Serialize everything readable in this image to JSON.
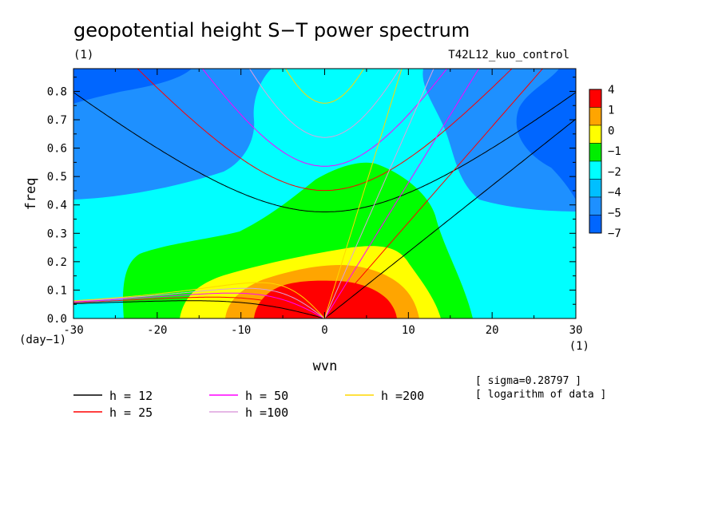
{
  "chart_data": {
    "type": "heatmap",
    "title": "geopotential height S−T power spectrum",
    "subtitle_left": "(1)",
    "subtitle_right": "T42L12_kuo_control",
    "xlabel": "wvn",
    "ylabel": "freq",
    "x_unit": "(1)",
    "y_unit": "(day−1)",
    "xlim": [
      -30,
      30
    ],
    "ylim": [
      0,
      0.88
    ],
    "x_ticks": [
      -30,
      -20,
      -10,
      0,
      10,
      20,
      30
    ],
    "y_ticks": [
      0.0,
      0.1,
      0.2,
      0.3,
      0.4,
      0.5,
      0.6,
      0.7,
      0.8
    ],
    "y_tick_labels": [
      "0.0",
      "0.1",
      "0.2",
      "0.3",
      "0.4",
      "0.5",
      "0.6",
      "0.7",
      "0.8"
    ],
    "colorbar": {
      "labels": [
        "4",
        "1",
        "0",
        "−1",
        "−2",
        "−4",
        "−5",
        "−7"
      ],
      "colors": [
        "#ff0000",
        "#ffa500",
        "#ffff00",
        "#00ee00",
        "#00ffff",
        "#00bfff",
        "#1e90ff",
        "#0066ff"
      ]
    },
    "series": [
      {
        "name": "h = 12",
        "h": 12,
        "color": "#000000"
      },
      {
        "name": "h = 25",
        "h": 25,
        "color": "#ff0000"
      },
      {
        "name": "h = 50",
        "h": 50,
        "color": "#ff00ff"
      },
      {
        "name": "h =100",
        "h": 100,
        "color": "#dda0dd"
      },
      {
        "name": "h =200",
        "h": 200,
        "color": "#ffd700"
      }
    ],
    "notes": [
      "[ sigma=0.28797 ]",
      "[ logarithm of data ]"
    ]
  }
}
